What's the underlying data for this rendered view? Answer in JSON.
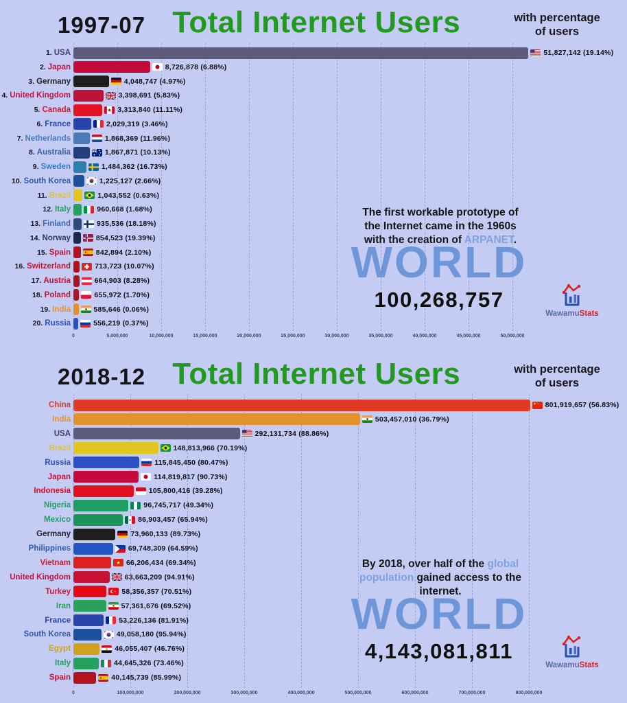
{
  "theme": {
    "background": "#c5ccf4",
    "title_green": "#22991f",
    "world_blue": "#6f96d8",
    "annotation_highlight": "#7da2dd",
    "grid_color": "#7682c3"
  },
  "logo": {
    "text_main": "Wawamu",
    "text_accent": "Stats"
  },
  "chart_data": [
    {
      "type": "bar",
      "orientation": "horizontal",
      "date": "1997-07",
      "title": "Total Internet Users",
      "subtitle": [
        "with percentage",
        "of users"
      ],
      "x_ticks": [
        "0",
        "5,000,000",
        "10,000,000",
        "15,000,000",
        "20,000,000",
        "25,000,000",
        "30,000,000",
        "35,000,000",
        "40,000,000",
        "45,000,000",
        "50,000,000"
      ],
      "x_tick_step": 5000000,
      "world_label": "WORLD",
      "world_value": "100,268,757",
      "annotation": [
        [
          {
            "t": "The first workable prototype of",
            "hl": false
          }
        ],
        [
          {
            "t": "the Internet came in the 1960s",
            "hl": false
          }
        ],
        [
          {
            "t": "with the creation of ",
            "hl": false
          },
          {
            "t": "ARPANET",
            "hl": true
          },
          {
            "t": ".",
            "hl": false
          }
        ]
      ],
      "rows": [
        {
          "rank": "1.",
          "country": "USA",
          "flag": "usa",
          "value": 51827142,
          "value_label": "51,827,142 (19.14%)",
          "bar_color": "#5c5b79",
          "label_color": "#3c3c6e"
        },
        {
          "rank": "2.",
          "country": "Japan",
          "flag": "japan",
          "value": 8726878,
          "value_label": "8,726,878 (6.88%)",
          "bar_color": "#c40b3c",
          "label_color": "#c41240"
        },
        {
          "rank": "3.",
          "country": "Germany",
          "flag": "germany",
          "value": 4048747,
          "value_label": "4,048,747 (4.97%)",
          "bar_color": "#1e1e1c",
          "label_color": "#232326"
        },
        {
          "rank": "4.",
          "country": "United Kingdom",
          "flag": "uk",
          "value": 3398691,
          "value_label": "3,398,691 (5.83%)",
          "bar_color": "#bf1238",
          "label_color": "#c41240"
        },
        {
          "rank": "5.",
          "country": "Canada",
          "flag": "canada",
          "value": 3313840,
          "value_label": "3,313,840 (11.11%)",
          "bar_color": "#e31223",
          "label_color": "#e3122d"
        },
        {
          "rank": "6.",
          "country": "France",
          "flag": "france",
          "value": 2029319,
          "value_label": "2,029,319 (3.46%)",
          "bar_color": "#2945ac",
          "label_color": "#2945ac"
        },
        {
          "rank": "7.",
          "country": "Netherlands",
          "flag": "netherlands",
          "value": 1868369,
          "value_label": "1,868,369 (11.96%)",
          "bar_color": "#4a7ab8",
          "label_color": "#4a7ab8"
        },
        {
          "rank": "8.",
          "country": "Australia",
          "flag": "australia",
          "value": 1867871,
          "value_label": "1,867,871 (10.13%)",
          "bar_color": "#24407c",
          "label_color": "#3a5da8"
        },
        {
          "rank": "9.",
          "country": "Sweden",
          "flag": "sweden",
          "value": 1484362,
          "value_label": "1,484,362 (16.73%)",
          "bar_color": "#2e7eb0",
          "label_color": "#3a7abf"
        },
        {
          "rank": "10.",
          "country": "South Korea",
          "flag": "southkorea",
          "value": 1225127,
          "value_label": "1,225,127 (2.66%)",
          "bar_color": "#1d4f9c",
          "label_color": "#2d5aa8"
        },
        {
          "rank": "11.",
          "country": "Brazil",
          "flag": "brazil",
          "value": 1043552,
          "value_label": "1,043,552 (0.63%)",
          "bar_color": "#e3c51f",
          "label_color": "#dfc52c"
        },
        {
          "rank": "12.",
          "country": "Italy",
          "flag": "italy",
          "value": 960668,
          "value_label": "960,668 (1.68%)",
          "bar_color": "#23a05c",
          "label_color": "#23a05c"
        },
        {
          "rank": "13.",
          "country": "Finland",
          "flag": "finland",
          "value": 935536,
          "value_label": "935,536 (18.18%)",
          "bar_color": "#2c4a7c",
          "label_color": "#3c6aaf"
        },
        {
          "rank": "14.",
          "country": "Norway",
          "flag": "norway",
          "value": 854523,
          "value_label": "854,523 (19.39%)",
          "bar_color": "#1e2a4e",
          "label_color": "#2a3a66"
        },
        {
          "rank": "15.",
          "country": "Spain",
          "flag": "spain",
          "value": 842894,
          "value_label": "842,894 (2.10%)",
          "bar_color": "#b5121f",
          "label_color": "#c41230"
        },
        {
          "rank": "16.",
          "country": "Switzerland",
          "flag": "switzerland",
          "value": 713723,
          "value_label": "713,723 (10.07%)",
          "bar_color": "#b3101c",
          "label_color": "#c41230"
        },
        {
          "rank": "17.",
          "country": "Austria",
          "flag": "austria",
          "value": 664903,
          "value_label": "664,903 (8.28%)",
          "bar_color": "#ad1220",
          "label_color": "#c41230"
        },
        {
          "rank": "18.",
          "country": "Poland",
          "flag": "poland",
          "value": 655972,
          "value_label": "655,972 (1.70%)",
          "bar_color": "#ad1626",
          "label_color": "#c41230"
        },
        {
          "rank": "19.",
          "country": "India",
          "flag": "india",
          "value": 585646,
          "value_label": "585,646 (0.06%)",
          "bar_color": "#e2912c",
          "label_color": "#e2912c"
        },
        {
          "rank": "20.",
          "country": "Russia",
          "flag": "russia",
          "value": 556219,
          "value_label": "556,219 (0.37%)",
          "bar_color": "#2b50c4",
          "label_color": "#2b50c4"
        }
      ]
    },
    {
      "type": "bar",
      "orientation": "horizontal",
      "date": "2018-12",
      "title": "Total Internet Users",
      "subtitle": [
        "with percentage",
        "of users"
      ],
      "x_ticks": [
        "0",
        "100,000,000",
        "200,000,000",
        "300,000,000",
        "400,000,000",
        "500,000,000",
        "600,000,000",
        "700,000,000",
        "800,000,000"
      ],
      "x_tick_step": 100000000,
      "world_label": "WORLD",
      "world_value": "4,143,081,811",
      "annotation": [
        [
          {
            "t": "By 2018, over half of the ",
            "hl": false
          },
          {
            "t": "global",
            "hl": true
          }
        ],
        [
          {
            "t": "population",
            "hl": true
          },
          {
            "t": " gained access to the",
            "hl": false
          }
        ],
        [
          {
            "t": "internet.",
            "hl": false
          }
        ]
      ],
      "rows": [
        {
          "rank": "",
          "country": "China",
          "flag": "china",
          "value": 801919657,
          "value_label": "801,919,657 (56.83%)",
          "bar_color": "#df3b24",
          "label_color": "#d93a2b"
        },
        {
          "rank": "",
          "country": "India",
          "flag": "india",
          "value": 503457010,
          "value_label": "503,457,010 (36.79%)",
          "bar_color": "#e2912c",
          "label_color": "#e2912c"
        },
        {
          "rank": "",
          "country": "USA",
          "flag": "usa",
          "value": 292131734,
          "value_label": "292,131,734 (88.86%)",
          "bar_color": "#5c5b79",
          "label_color": "#3c3c6e"
        },
        {
          "rank": "",
          "country": "Brazil",
          "flag": "brazil",
          "value": 148813966,
          "value_label": "148,813,966 (70.19%)",
          "bar_color": "#e3c51f",
          "label_color": "#dfc52c"
        },
        {
          "rank": "",
          "country": "Russia",
          "flag": "russia",
          "value": 115845450,
          "value_label": "115,845,450 (80.47%)",
          "bar_color": "#2b50c4",
          "label_color": "#2b50c4"
        },
        {
          "rank": "",
          "country": "Japan",
          "flag": "japan",
          "value": 114819817,
          "value_label": "114,819,817 (90.73%)",
          "bar_color": "#c40b3c",
          "label_color": "#c41240"
        },
        {
          "rank": "",
          "country": "Indonesia",
          "flag": "indonesia",
          "value": 105800416,
          "value_label": "105,800,416 (39.28%)",
          "bar_color": "#e01020",
          "label_color": "#e01025"
        },
        {
          "rank": "",
          "country": "Nigeria",
          "flag": "nigeria",
          "value": 96745717,
          "value_label": "96,745,717 (49.34%)",
          "bar_color": "#1e9e63",
          "label_color": "#1e9e63"
        },
        {
          "rank": "",
          "country": "Mexico",
          "flag": "mexico",
          "value": 86903457,
          "value_label": "86,903,457 (65.94%)",
          "bar_color": "#199358",
          "label_color": "#1e9e63"
        },
        {
          "rank": "",
          "country": "Germany",
          "flag": "germany",
          "value": 73960133,
          "value_label": "73,960,133 (89.73%)",
          "bar_color": "#1e1e1c",
          "label_color": "#232326"
        },
        {
          "rank": "",
          "country": "Philippines",
          "flag": "philippines",
          "value": 69748309,
          "value_label": "69,748,309 (64.59%)",
          "bar_color": "#2456c8",
          "label_color": "#2d5aa8"
        },
        {
          "rank": "",
          "country": "Vietnam",
          "flag": "vietnam",
          "value": 66206434,
          "value_label": "66,206,434 (69.34%)",
          "bar_color": "#dd2222",
          "label_color": "#e3122d"
        },
        {
          "rank": "",
          "country": "United Kingdom",
          "flag": "uk",
          "value": 63663209,
          "value_label": "63,663,209 (94.91%)",
          "bar_color": "#c41230",
          "label_color": "#c41240"
        },
        {
          "rank": "",
          "country": "Turkey",
          "flag": "turkey",
          "value": 58356357,
          "value_label": "58,356,357 (70.51%)",
          "bar_color": "#e30a17",
          "label_color": "#e3122d"
        },
        {
          "rank": "",
          "country": "Iran",
          "flag": "iran",
          "value": 57361676,
          "value_label": "57,361,676 (69.52%)",
          "bar_color": "#2ba05a",
          "label_color": "#2ba05a"
        },
        {
          "rank": "",
          "country": "France",
          "flag": "france",
          "value": 53226136,
          "value_label": "53,226,136 (81.91%)",
          "bar_color": "#2945ac",
          "label_color": "#2945ac"
        },
        {
          "rank": "",
          "country": "South Korea",
          "flag": "southkorea",
          "value": 49058180,
          "value_label": "49,058,180 (95.94%)",
          "bar_color": "#1d4f9c",
          "label_color": "#2d5aa8"
        },
        {
          "rank": "",
          "country": "Egypt",
          "flag": "egypt",
          "value": 46055407,
          "value_label": "46,055,407 (46.76%)",
          "bar_color": "#d0a21b",
          "label_color": "#d0a21b"
        },
        {
          "rank": "",
          "country": "Italy",
          "flag": "italy",
          "value": 44645326,
          "value_label": "44,645,326 (73.46%)",
          "bar_color": "#23a05c",
          "label_color": "#23a05c"
        },
        {
          "rank": "",
          "country": "Spain",
          "flag": "spain",
          "value": 40145739,
          "value_label": "40,145,739 (85.99%)",
          "bar_color": "#b5121f",
          "label_color": "#c41230"
        }
      ]
    }
  ]
}
